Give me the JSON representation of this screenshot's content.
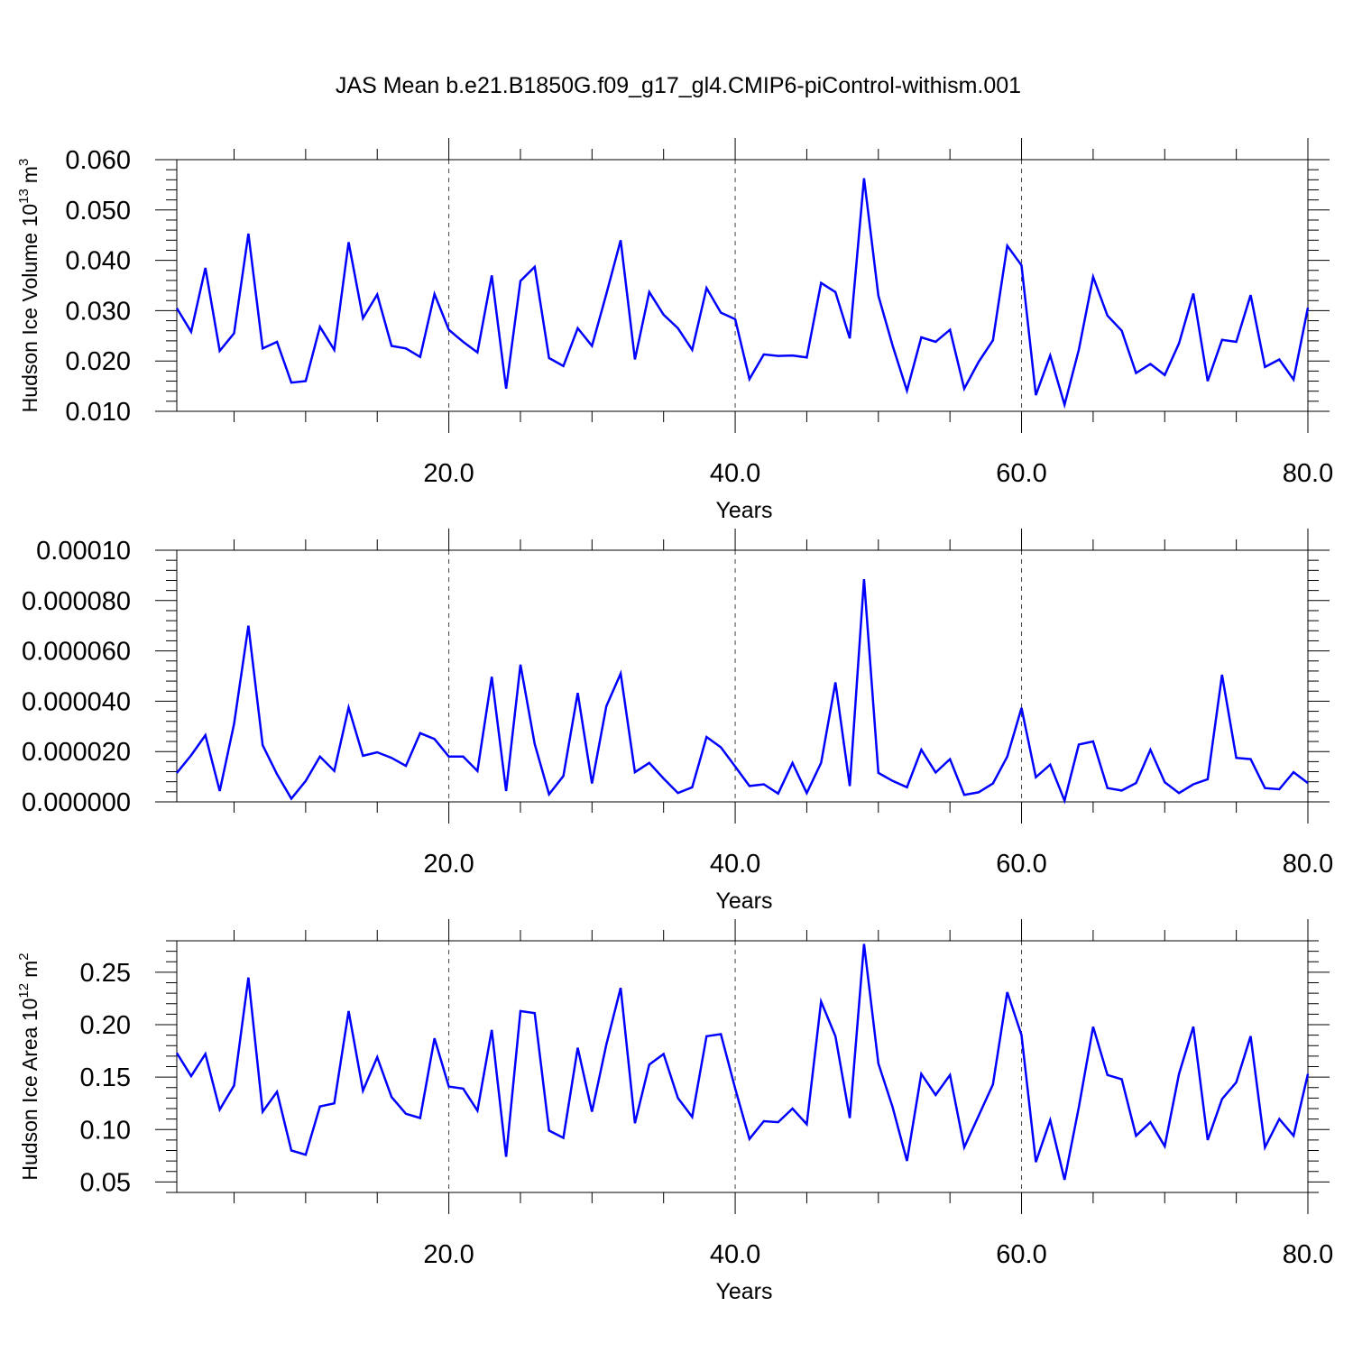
{
  "title": "JAS Mean b.e21.B1850G.f09_g17_gl4.CMIP6-piControl-withism.001",
  "colors": {
    "line": "#0000ff",
    "axis": "#000000",
    "grid": "#444444"
  },
  "chart_data": [
    {
      "type": "line",
      "ylabel": "Hudson Ice Volume 10",
      "ylabel_exp": "13",
      "ylabel_unit": "m",
      "ylabel_unit_exp": "3",
      "xlabel": "Years",
      "xlim": [
        1,
        80
      ],
      "ylim": [
        0.01,
        0.06
      ],
      "xticks": [
        20,
        40,
        60,
        80
      ],
      "xtick_labels": [
        "20.0",
        "40.0",
        "60.0",
        "80.0"
      ],
      "yticks": [
        0.01,
        0.02,
        0.03,
        0.04,
        0.05,
        0.06
      ],
      "ytick_labels": [
        "0.010",
        "0.020",
        "0.030",
        "0.040",
        "0.050",
        "0.060"
      ],
      "grid": "dashed vertical at major x ticks",
      "series": [
        {
          "x": [
            1,
            2,
            3,
            4,
            5,
            6,
            7,
            8,
            9,
            10,
            11,
            12,
            13,
            14,
            15,
            16,
            17,
            18,
            19,
            20,
            21,
            22,
            23,
            24,
            25,
            26,
            27,
            28,
            29,
            30,
            31,
            32,
            33,
            34,
            35,
            36,
            37,
            38,
            39,
            40,
            41,
            42,
            43,
            44,
            45,
            46,
            47,
            48,
            49,
            50,
            51,
            52,
            53,
            54,
            55,
            56,
            57,
            58,
            59,
            60,
            61,
            62,
            63,
            64,
            65,
            66,
            67,
            68,
            69,
            70,
            71,
            72,
            73,
            74,
            75,
            76,
            77,
            78,
            79,
            80
          ],
          "values": [
            0.0305,
            0.0258,
            0.0385,
            0.022,
            0.0255,
            0.0453,
            0.0225,
            0.0238,
            0.0157,
            0.016,
            0.0268,
            0.0222,
            0.0436,
            0.0285,
            0.0332,
            0.023,
            0.0225,
            0.0208,
            0.0333,
            0.0262,
            0.0238,
            0.0217,
            0.037,
            0.0145,
            0.0359,
            0.0387,
            0.0206,
            0.019,
            0.0265,
            0.023,
            0.0333,
            0.044,
            0.0203,
            0.0337,
            0.0292,
            0.0265,
            0.0222,
            0.0345,
            0.0296,
            0.0283,
            0.0164,
            0.0213,
            0.021,
            0.0211,
            0.0207,
            0.0355,
            0.0337,
            0.0245,
            0.0563,
            0.033,
            0.023,
            0.0141,
            0.0247,
            0.0238,
            0.0262,
            0.0145,
            0.0198,
            0.0241,
            0.0429,
            0.039,
            0.0132,
            0.0211,
            0.0113,
            0.0222,
            0.0367,
            0.029,
            0.026,
            0.0176,
            0.0194,
            0.0172,
            0.0235,
            0.0334,
            0.016,
            0.0242,
            0.0238,
            0.0331,
            0.0188,
            0.0203,
            0.0163,
            0.0306
          ]
        }
      ]
    },
    {
      "type": "line",
      "ylabel": "",
      "xlabel": "Years",
      "xlim": [
        1,
        80
      ],
      "ylim": [
        0.0,
        0.0001
      ],
      "xticks": [
        20,
        40,
        60,
        80
      ],
      "xtick_labels": [
        "20.0",
        "40.0",
        "60.0",
        "80.0"
      ],
      "yticks": [
        0.0,
        2e-05,
        4e-05,
        6e-05,
        8e-05,
        0.0001
      ],
      "ytick_labels": [
        "0.000000",
        "0.000020",
        "0.000040",
        "0.000060",
        "0.000080",
        "0.00010"
      ],
      "grid": "dashed vertical at major x ticks",
      "series": [
        {
          "x": [
            1,
            2,
            3,
            4,
            5,
            6,
            7,
            8,
            9,
            10,
            11,
            12,
            13,
            14,
            15,
            16,
            17,
            18,
            19,
            20,
            21,
            22,
            23,
            24,
            25,
            26,
            27,
            28,
            29,
            30,
            31,
            32,
            33,
            34,
            35,
            36,
            37,
            38,
            39,
            40,
            41,
            42,
            43,
            44,
            45,
            46,
            47,
            48,
            49,
            50,
            51,
            52,
            53,
            54,
            55,
            56,
            57,
            58,
            59,
            60,
            61,
            62,
            63,
            64,
            65,
            66,
            67,
            68,
            69,
            70,
            71,
            72,
            73,
            74,
            75,
            76,
            77,
            78,
            79,
            80
          ],
          "values": [
            1.15e-05,
            1.85e-05,
            2.65e-05,
            4.3e-06,
            3.1e-05,
            7e-05,
            2.25e-05,
            1.1e-05,
            1.3e-06,
            8.3e-06,
            1.8e-05,
            1.23e-05,
            3.75e-05,
            1.83e-05,
            1.97e-05,
            1.75e-05,
            1.43e-05,
            2.73e-05,
            2.5e-05,
            1.8e-05,
            1.8e-05,
            1.23e-05,
            4.97e-05,
            4.3e-06,
            5.45e-05,
            2.3e-05,
            3e-06,
            1.03e-05,
            4.33e-05,
            7.3e-06,
            3.8e-05,
            5.1e-05,
            1.18e-05,
            1.55e-05,
            9.3e-06,
            3.5e-06,
            5.8e-06,
            2.58e-05,
            2.17e-05,
            1.4e-05,
            6.3e-06,
            7e-06,
            3.3e-06,
            1.55e-05,
            3.5e-06,
            1.55e-05,
            4.75e-05,
            6.3e-06,
            8.85e-05,
            1.15e-05,
            8.3e-06,
            5.8e-06,
            2.07e-05,
            1.17e-05,
            1.7e-05,
            2.8e-06,
            3.8e-06,
            7.3e-06,
            1.8e-05,
            3.73e-05,
            9.8e-06,
            1.48e-05,
            5e-07,
            2.28e-05,
            2.4e-05,
            5.5e-06,
            4.5e-06,
            7.5e-06,
            2.07e-05,
            7.8e-06,
            3.5e-06,
            7e-06,
            9e-06,
            5.05e-05,
            1.75e-05,
            1.7e-05,
            5.5e-06,
            5e-06,
            1.18e-05,
            7.5e-06
          ]
        }
      ]
    },
    {
      "type": "line",
      "ylabel": "Hudson Ice Area 10",
      "ylabel_exp": "12",
      "ylabel_unit": "m",
      "ylabel_unit_exp": "2",
      "xlabel": "Years",
      "xlim": [
        1,
        80
      ],
      "ylim": [
        0.04,
        0.28
      ],
      "xticks": [
        20,
        40,
        60,
        80
      ],
      "xtick_labels": [
        "20.0",
        "40.0",
        "60.0",
        "80.0"
      ],
      "yticks": [
        0.05,
        0.1,
        0.15,
        0.2,
        0.25
      ],
      "ytick_labels": [
        "0.05",
        "0.10",
        "0.15",
        "0.20",
        "0.25"
      ],
      "grid": "dashed vertical at major x ticks",
      "series": [
        {
          "x": [
            1,
            2,
            3,
            4,
            5,
            6,
            7,
            8,
            9,
            10,
            11,
            12,
            13,
            14,
            15,
            16,
            17,
            18,
            19,
            20,
            21,
            22,
            23,
            24,
            25,
            26,
            27,
            28,
            29,
            30,
            31,
            32,
            33,
            34,
            35,
            36,
            37,
            38,
            39,
            40,
            41,
            42,
            43,
            44,
            45,
            46,
            47,
            48,
            49,
            50,
            51,
            52,
            53,
            54,
            55,
            56,
            57,
            58,
            59,
            60,
            61,
            62,
            63,
            64,
            65,
            66,
            67,
            68,
            69,
            70,
            71,
            72,
            73,
            74,
            75,
            76,
            77,
            78,
            79,
            80
          ],
          "values": [
            0.173,
            0.151,
            0.172,
            0.119,
            0.142,
            0.245,
            0.117,
            0.136,
            0.08,
            0.076,
            0.122,
            0.125,
            0.213,
            0.137,
            0.169,
            0.131,
            0.115,
            0.111,
            0.187,
            0.141,
            0.139,
            0.118,
            0.195,
            0.074,
            0.213,
            0.211,
            0.099,
            0.092,
            0.178,
            0.117,
            0.181,
            0.235,
            0.106,
            0.162,
            0.172,
            0.13,
            0.112,
            0.189,
            0.191,
            0.139,
            0.091,
            0.108,
            0.107,
            0.12,
            0.105,
            0.222,
            0.189,
            0.111,
            0.277,
            0.163,
            0.121,
            0.07,
            0.153,
            0.133,
            0.152,
            0.083,
            0.113,
            0.143,
            0.231,
            0.19,
            0.069,
            0.109,
            0.052,
            0.121,
            0.198,
            0.152,
            0.148,
            0.094,
            0.107,
            0.084,
            0.153,
            0.198,
            0.09,
            0.129,
            0.145,
            0.189,
            0.083,
            0.11,
            0.094,
            0.153
          ]
        }
      ]
    }
  ]
}
